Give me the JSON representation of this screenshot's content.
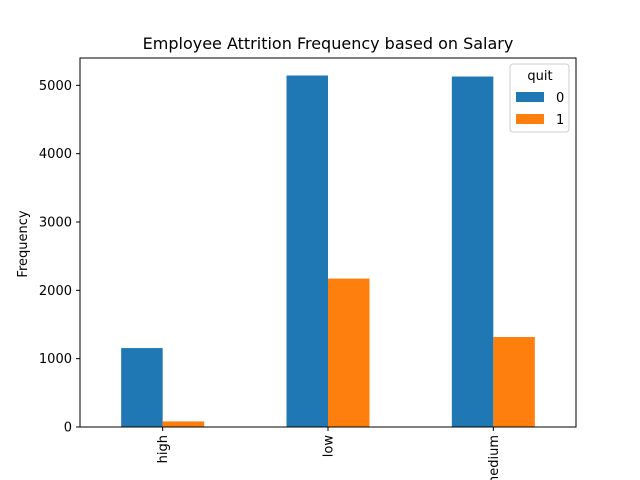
{
  "chart_data": {
    "type": "bar",
    "title": "Employee Attrition Frequency based on Salary",
    "xlabel": "",
    "ylabel": "Frequency",
    "categories": [
      "high",
      "low",
      "medium"
    ],
    "series": [
      {
        "name": "0",
        "values": [
          1155,
          5144,
          5129
        ],
        "color": "#1f77b4"
      },
      {
        "name": "1",
        "values": [
          82,
          2172,
          1317
        ],
        "color": "#ff7f0e"
      }
    ],
    "ylim": [
      0,
      5400
    ],
    "yticks": [
      0,
      1000,
      2000,
      3000,
      4000,
      5000
    ],
    "legend": {
      "title": "quit",
      "placement": "top-right"
    },
    "grid": false
  }
}
